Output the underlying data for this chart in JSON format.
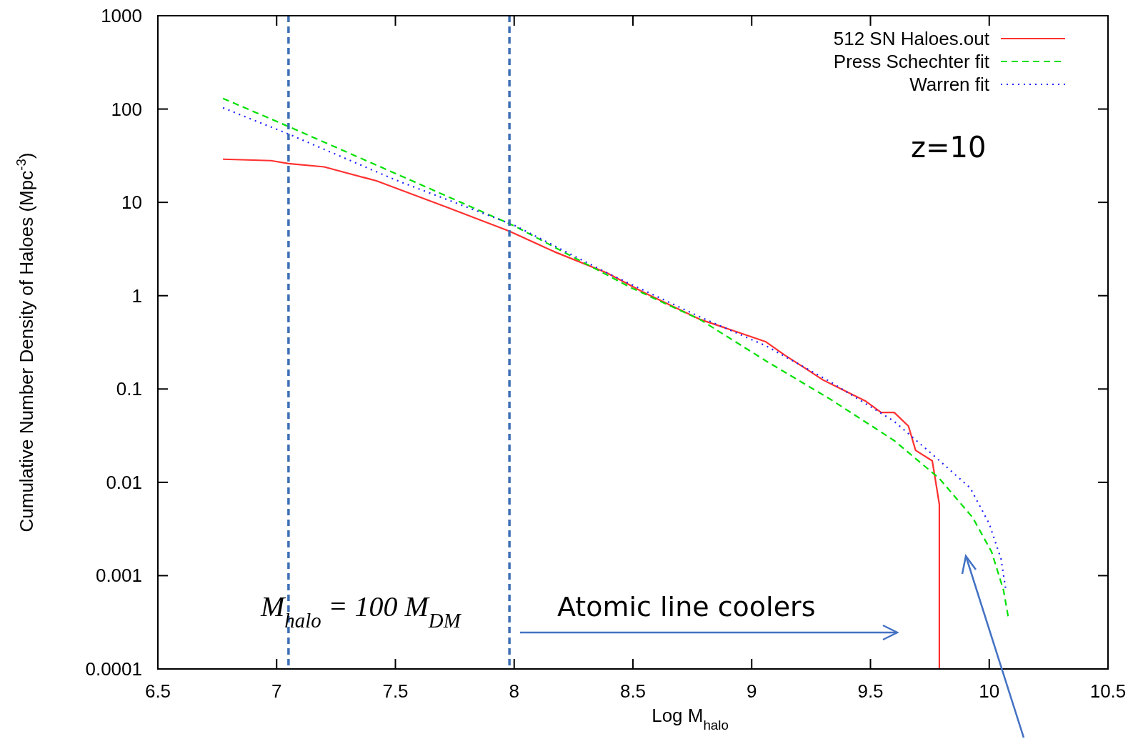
{
  "chart_data": {
    "type": "line",
    "xlabel": "Log M$_{halo}$",
    "ylabel": "Cumulative Number Density of Haloes (Mpc$^{-3}$)",
    "log": "y",
    "xlim": [
      6.5,
      10.5
    ],
    "ylim": [
      0.0001,
      1000
    ],
    "xticks": [
      6.5,
      7,
      7.5,
      8,
      8.5,
      9,
      9.5,
      10,
      10.5
    ],
    "yticks": [
      0.0001,
      0.001,
      0.01,
      0.1,
      1,
      10,
      100,
      1000
    ],
    "grid": false,
    "legend": "top right",
    "series": [
      {
        "name": "512 SN Haloes.out",
        "color": "#ff3030",
        "line_style": "solid",
        "x": [
          6.774,
          6.976,
          7.05,
          7.2,
          7.42,
          7.715,
          7.98,
          8.17,
          8.39,
          8.54,
          8.78,
          8.95,
          9.06,
          9.14,
          9.22,
          9.3,
          9.39,
          9.48,
          9.545,
          9.6,
          9.66,
          9.69,
          9.76,
          9.77,
          9.79,
          9.79
        ],
        "values": [
          29,
          28,
          26,
          24,
          17,
          8.9,
          4.9,
          2.95,
          1.76,
          1.1,
          0.56,
          0.4,
          0.32,
          0.23,
          0.17,
          0.125,
          0.096,
          0.074,
          0.056,
          0.056,
          0.04,
          0.022,
          0.017,
          0.012,
          0.0058,
          0.0001
        ]
      },
      {
        "name": "Press Schechter fit",
        "color": "#00e000",
        "line_style": "dashed",
        "x": [
          6.774,
          7.05,
          7.5,
          8,
          8.5,
          8.78,
          9.06,
          9.33,
          9.6,
          9.79,
          9.93,
          10.01,
          10.06,
          10.08
        ],
        "values": [
          130,
          65,
          20.4,
          5.6,
          1.19,
          0.56,
          0.2,
          0.078,
          0.028,
          0.011,
          0.0042,
          0.0018,
          0.0007,
          0.00036
        ]
      },
      {
        "name": "Warren fit",
        "color": "#2020ff",
        "line_style": "dotted",
        "x": [
          6.774,
          7.05,
          7.5,
          8,
          8.39,
          8.79,
          9.06,
          9.33,
          9.6,
          9.77,
          9.92,
          10.0,
          10.05,
          10.07
        ],
        "values": [
          103,
          54,
          17.4,
          5.7,
          1.76,
          0.58,
          0.29,
          0.12,
          0.045,
          0.019,
          0.0087,
          0.0036,
          0.0015,
          0.0007
        ]
      }
    ],
    "ref_lines": [
      {
        "axis": "x",
        "value": 7.05,
        "color": "#3d6fb6",
        "line_style": "dashed"
      },
      {
        "axis": "x",
        "value": 7.98,
        "color": "#3d6fb6",
        "line_style": "dashed"
      }
    ],
    "annotations": [
      "z=10",
      "M$_{halo}$ = 100 M$_{DM}$",
      "Atomic line coolers"
    ]
  }
}
